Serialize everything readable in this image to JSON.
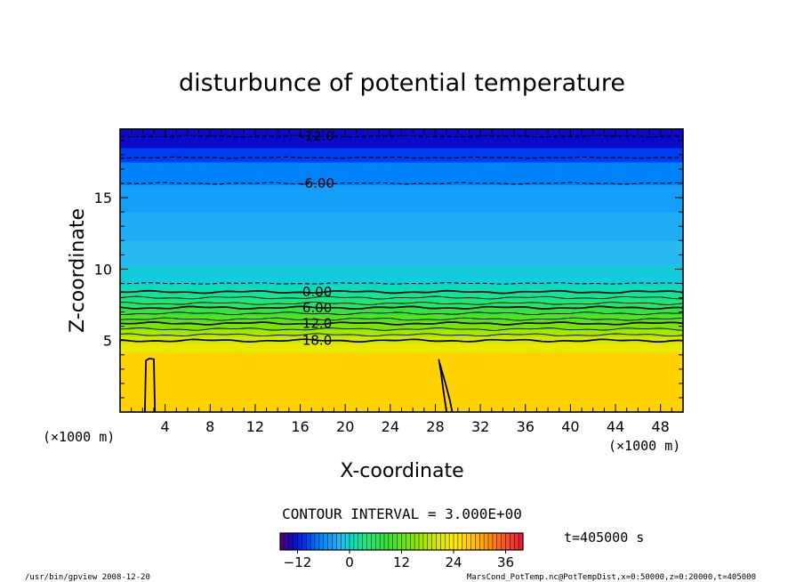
{
  "chart_data": {
    "type": "heatmap",
    "title": "disturbunce of potential temperature",
    "xlabel": "X-coordinate",
    "ylabel": "Z-coordinate",
    "x_unit": "(×1000 m)",
    "x_range": [
      0,
      50
    ],
    "y_range": [
      0,
      19.8
    ],
    "x_ticks": [
      4,
      8,
      12,
      16,
      20,
      24,
      28,
      32,
      36,
      40,
      44,
      48
    ],
    "y_ticks": [
      5,
      10,
      15
    ],
    "x_minor_step": 1,
    "y_minor_step": 1,
    "field_bands": [
      {
        "z_from": 0,
        "z_to": 4.2,
        "value": 27
      },
      {
        "z_from": 4.2,
        "z_to": 4.8,
        "value": 22
      },
      {
        "z_from": 4.8,
        "z_to": 5.3,
        "value": 20
      },
      {
        "z_from": 5.3,
        "z_to": 5.8,
        "value": 17
      },
      {
        "z_from": 5.8,
        "z_to": 6.3,
        "value": 14
      },
      {
        "z_from": 6.3,
        "z_to": 6.8,
        "value": 11
      },
      {
        "z_from": 6.8,
        "z_to": 7.3,
        "value": 8
      },
      {
        "z_from": 7.3,
        "z_to": 7.8,
        "value": 5
      },
      {
        "z_from": 7.8,
        "z_to": 8.3,
        "value": 3
      },
      {
        "z_from": 8.3,
        "z_to": 8.9,
        "value": 1
      },
      {
        "z_from": 8.9,
        "z_to": 10.3,
        "value": -1
      },
      {
        "z_from": 10.3,
        "z_to": 12.0,
        "value": -2
      },
      {
        "z_from": 12.0,
        "z_to": 14.0,
        "value": -3
      },
      {
        "z_from": 14.0,
        "z_to": 15.9,
        "value": -4
      },
      {
        "z_from": 15.9,
        "z_to": 17.5,
        "value": -7
      },
      {
        "z_from": 17.5,
        "z_to": 18.5,
        "value": -10
      },
      {
        "z_from": 18.5,
        "z_to": 19.8,
        "value": -13
      }
    ],
    "contours_negative": [
      {
        "z": 19.3,
        "label": "-12.0"
      },
      {
        "z": 17.8
      },
      {
        "z": 16.0,
        "label": "-6.00"
      },
      {
        "z": 9.0
      }
    ],
    "contours_positive": [
      {
        "z": 8.4,
        "label": "0.00"
      },
      {
        "z": 8.0
      },
      {
        "z": 7.6
      },
      {
        "z": 7.3,
        "label": "6.00"
      },
      {
        "z": 6.9
      },
      {
        "z": 6.5
      },
      {
        "z": 6.2,
        "label": "12.0"
      },
      {
        "z": 5.8
      },
      {
        "z": 5.4
      },
      {
        "z": 5.0,
        "label": "18.0"
      }
    ],
    "contour_label_x": 17.5,
    "closed_contours": [
      {
        "points": [
          [
            2.2,
            0
          ],
          [
            2.3,
            3.6
          ],
          [
            2.6,
            3.75
          ],
          [
            3.0,
            3.7
          ],
          [
            3.1,
            0
          ]
        ]
      },
      {
        "points": [
          [
            28.3,
            3.7
          ],
          [
            28.5,
            2.8
          ],
          [
            28.7,
            1.6
          ],
          [
            29.0,
            0
          ]
        ]
      },
      {
        "points": [
          [
            28.4,
            3.4
          ],
          [
            28.9,
            2.0
          ],
          [
            29.3,
            0.8
          ],
          [
            29.5,
            0
          ]
        ]
      }
    ],
    "contour_interval_label": "CONTOUR INTERVAL = 3.000E+00",
    "colorbar": {
      "min": -16,
      "max": 40,
      "step": 1,
      "tick_values": [
        -12,
        0,
        12,
        24,
        36
      ],
      "tick_labels": [
        "−12",
        "0",
        "12",
        "24",
        "36"
      ]
    },
    "time_label": "t=405000  s"
  },
  "footer": {
    "left": "/usr/bin/gpview   2008-12-20",
    "right": "MarsCond_PotTemp.nc@PotTempDist,x=0:50000,z=0:20000,t=405000"
  }
}
